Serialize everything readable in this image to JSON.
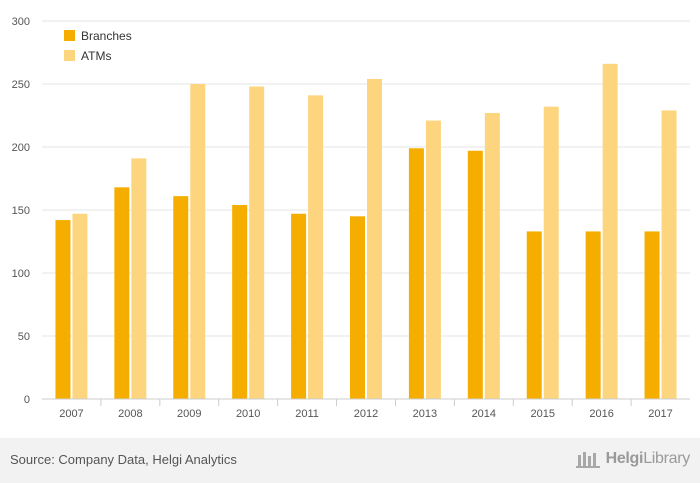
{
  "chart_data": {
    "type": "bar",
    "categories": [
      "2007",
      "2008",
      "2009",
      "2010",
      "2011",
      "2012",
      "2013",
      "2014",
      "2015",
      "2016",
      "2017"
    ],
    "series": [
      {
        "name": "Branches",
        "color": "#f5ae00",
        "values": [
          142,
          168,
          161,
          154,
          147,
          145,
          199,
          197,
          133,
          133,
          133
        ]
      },
      {
        "name": "ATMs",
        "color": "#fdd57e",
        "values": [
          147,
          191,
          250,
          248,
          241,
          254,
          221,
          227,
          232,
          266,
          229
        ]
      }
    ],
    "ylim": [
      0,
      300
    ],
    "yticks": [
      "0",
      "50",
      "100",
      "150",
      "200",
      "250",
      "300"
    ],
    "grid": true,
    "legend_position": "top-left"
  },
  "footer": {
    "source": "Source: Company Data, Helgi Analytics",
    "brand_bold": "Helgi",
    "brand_light": "Library"
  },
  "colors": {
    "grid": "#e6e6e6",
    "axis": "#cccccc",
    "tick_text": "#555555",
    "footer_bg": "#f2f2f2"
  }
}
